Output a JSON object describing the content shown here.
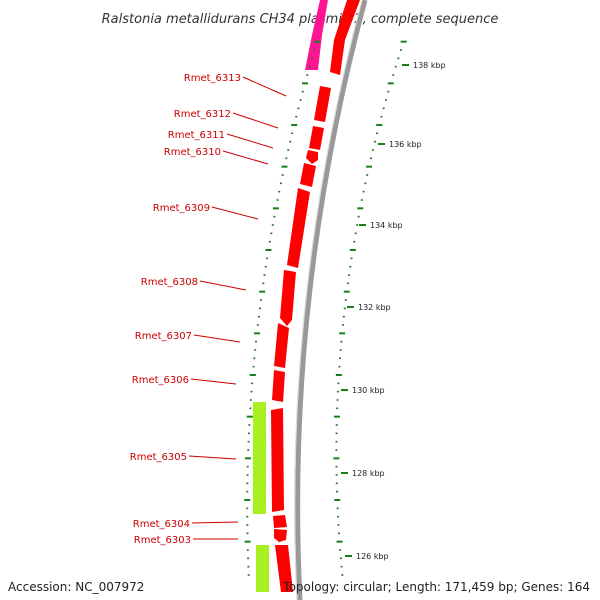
{
  "title": "Ralstonia metallidurans CH34 plasmid 2, complete sequence",
  "accession": "Accession: NC_007972",
  "summary": "Topology: circular; Length: 171,459 bp; Genes: 164",
  "colors": {
    "forward_gene": "#ff0000",
    "forward_gene_dark": "#cc0000",
    "magenta_gene": "#ff1493",
    "green_feature": "#a8f020",
    "backbone": "#888888",
    "tick": "#1a7f1a",
    "label_line": "#cc0000"
  },
  "genes": [
    {
      "id": "Rmet_6313",
      "label": "Rmet_6313"
    },
    {
      "id": "Rmet_6312",
      "label": "Rmet_6312"
    },
    {
      "id": "Rmet_6311",
      "label": "Rmet_6311"
    },
    {
      "id": "Rmet_6310",
      "label": "Rmet_6310"
    },
    {
      "id": "Rmet_6309",
      "label": "Rmet_6309"
    },
    {
      "id": "Rmet_6308",
      "label": "Rmet_6308"
    },
    {
      "id": "Rmet_6307",
      "label": "Rmet_6307"
    },
    {
      "id": "Rmet_6306",
      "label": "Rmet_6306"
    },
    {
      "id": "Rmet_6305",
      "label": "Rmet_6305"
    },
    {
      "id": "Rmet_6304",
      "label": "Rmet_6304"
    },
    {
      "id": "Rmet_6303",
      "label": "Rmet_6303"
    }
  ],
  "kbp_ticks": [
    "138 kbp",
    "136 kbp",
    "134 kbp",
    "132 kbp",
    "130 kbp",
    "128 kbp",
    "126 kbp"
  ]
}
